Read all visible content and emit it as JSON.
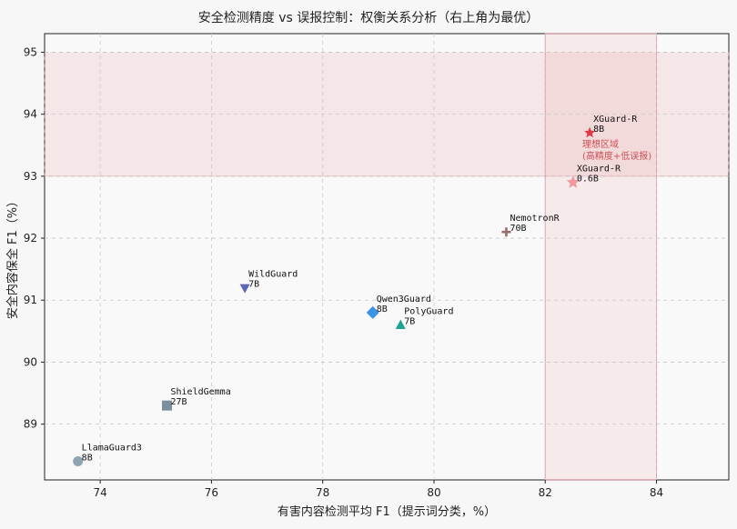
{
  "chart_data": {
    "type": "scatter",
    "title": "安全检测精度 vs 误报控制：权衡关系分析（右上角为最优）",
    "xlabel": "有害内容检测平均 F1（提示词分类，%）",
    "ylabel": "安全内容保全 F1（%）",
    "xlim": [
      73.0,
      85.3
    ],
    "ylim": [
      88.1,
      95.3
    ],
    "xticks": [
      74,
      76,
      78,
      80,
      82,
      84
    ],
    "yticks": [
      89,
      90,
      91,
      92,
      93,
      94,
      95
    ],
    "grid": true,
    "optimal_region": {
      "x": [
        82,
        84
      ],
      "y": [
        93,
        95
      ],
      "label_lines": [
        "理想区域",
        "(高精度+低误报)"
      ],
      "color": "#e9a4a8"
    },
    "points": [
      {
        "label_lines": [
          "LlamaGuard3",
          "8B"
        ],
        "x": 73.6,
        "y": 88.4,
        "marker": "circle",
        "color": "#8fa4b3"
      },
      {
        "label_lines": [
          "ShieldGemma",
          "27B"
        ],
        "x": 75.2,
        "y": 89.3,
        "marker": "square",
        "color": "#7a8f9b"
      },
      {
        "label_lines": [
          "WildGuard",
          "7B"
        ],
        "x": 76.6,
        "y": 91.2,
        "marker": "triangle-down",
        "color": "#5a66b6"
      },
      {
        "label_lines": [
          "Qwen3Guard",
          "8B"
        ],
        "x": 78.9,
        "y": 90.8,
        "marker": "diamond",
        "color": "#3b93e5"
      },
      {
        "label_lines": [
          "PolyGuard",
          "7B"
        ],
        "x": 79.4,
        "y": 90.6,
        "marker": "triangle-up",
        "color": "#20a294"
      },
      {
        "label_lines": [
          "NemotronR",
          "70B"
        ],
        "x": 81.3,
        "y": 92.1,
        "marker": "plus",
        "color": "#9b6b6b"
      },
      {
        "label_lines": [
          "XGuard-R",
          "0.6B"
        ],
        "x": 82.5,
        "y": 92.9,
        "marker": "star",
        "color": "#ef9aa0"
      },
      {
        "label_lines": [
          "XGuard-R",
          "8B"
        ],
        "x": 82.8,
        "y": 93.7,
        "marker": "star",
        "color": "#df3a47"
      }
    ]
  }
}
